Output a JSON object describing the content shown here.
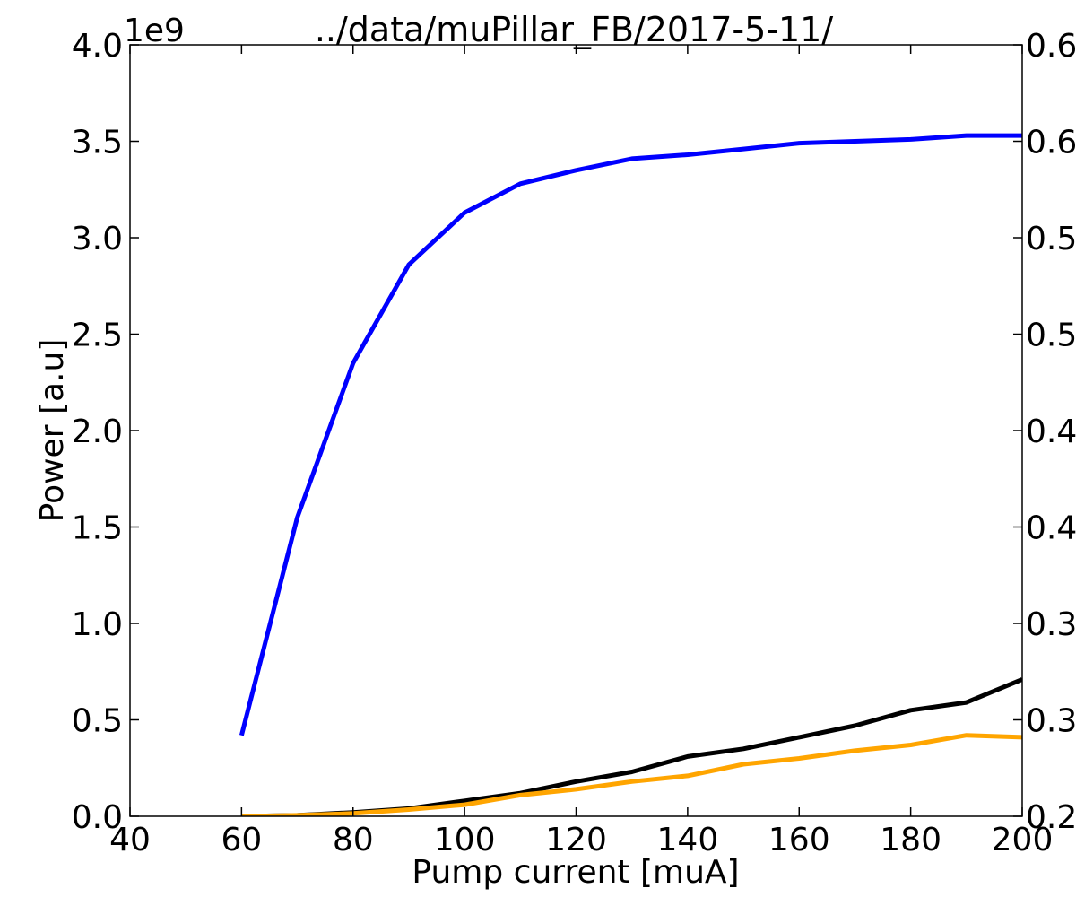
{
  "chart_data": {
    "type": "line",
    "title": "../data/muPillar_FB/2017-5-11/",
    "xlabel": "Pump current [muA]",
    "ylabel": "Power [a.u]",
    "offset_label": "1e9",
    "xlim": [
      40,
      200
    ],
    "ylim": [
      0.0,
      4.0
    ],
    "y2lim": [
      0.2,
      0.6
    ],
    "x_ticks": [
      "40",
      "60",
      "80",
      "100",
      "120",
      "140",
      "160",
      "180",
      "200"
    ],
    "y_ticks": [
      "0.0",
      "0.5",
      "1.0",
      "1.5",
      "2.0",
      "2.5",
      "3.0",
      "3.5",
      "4.0"
    ],
    "y2_ticks": [
      "0.2",
      "0.3",
      "0.3",
      "0.4",
      "0.4",
      "0.5",
      "0.5",
      "0.6",
      "0.6"
    ],
    "grid": false,
    "x": [
      60,
      70,
      80,
      90,
      100,
      110,
      120,
      130,
      140,
      150,
      160,
      170,
      180,
      190,
      200
    ],
    "series": [
      {
        "color": "#0000ff",
        "values": [
          0.42,
          1.55,
          2.35,
          2.86,
          3.13,
          3.28,
          3.35,
          3.41,
          3.43,
          3.46,
          3.49,
          3.5,
          3.51,
          3.53,
          3.53
        ]
      },
      {
        "color": "#000000",
        "values": [
          0.0,
          0.005,
          0.02,
          0.04,
          0.08,
          0.12,
          0.18,
          0.23,
          0.31,
          0.35,
          0.41,
          0.47,
          0.55,
          0.59,
          0.71
        ]
      },
      {
        "color": "#ffa500",
        "values": [
          0.0,
          0.005,
          0.015,
          0.035,
          0.06,
          0.11,
          0.14,
          0.18,
          0.21,
          0.27,
          0.3,
          0.34,
          0.37,
          0.42,
          0.41
        ]
      }
    ]
  }
}
